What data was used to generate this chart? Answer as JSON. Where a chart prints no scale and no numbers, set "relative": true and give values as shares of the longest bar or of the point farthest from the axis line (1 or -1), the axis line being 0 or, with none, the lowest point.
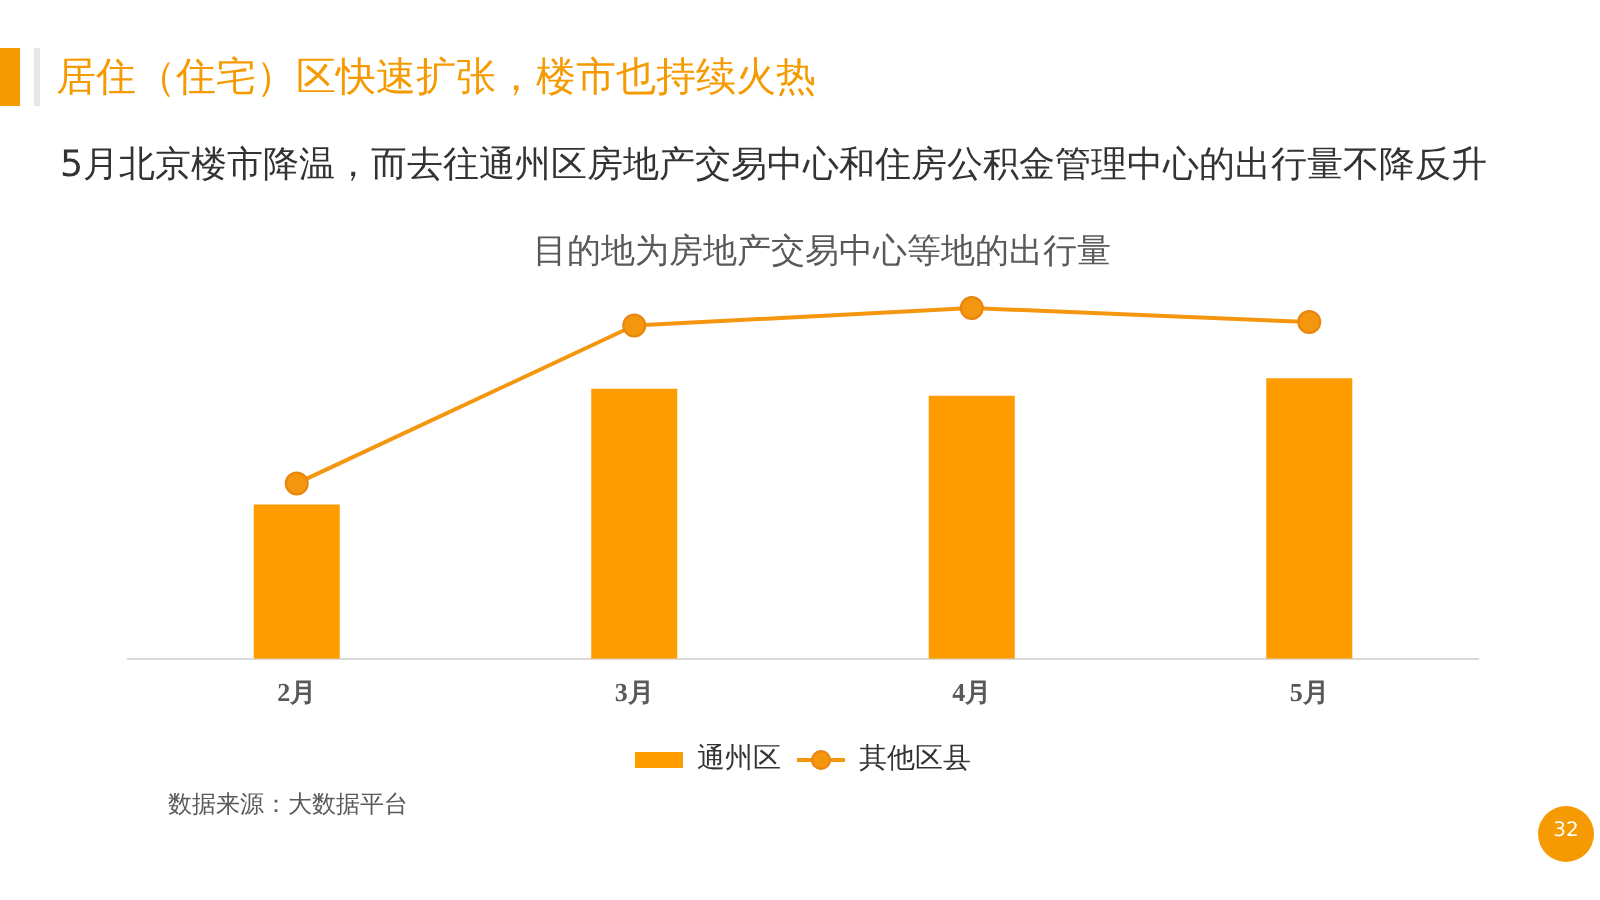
{
  "chart_data": {
    "type": "bar",
    "title": "居住（住宅）区快速扩张，楼市也持续火热",
    "subtitle": "5月北京楼市降温，而去往通州区房地产交易中心和住房公积金管理中心的出行量不降反升",
    "annotations": [
      "目的地为房地产交易中心等地的出行量",
      "数据来源：大数据平台",
      "32"
    ],
    "categories": [
      "2月",
      "3月",
      "4月",
      "5月"
    ],
    "relative": true,
    "series": [
      {
        "name": "通州区",
        "color": "#ff9c00",
        "values": [
          0.44,
          0.77,
          0.75,
          0.8
        ]
      },
      {
        "name": "其他区县",
        "type": "line",
        "color": "#f5960f",
        "values": [
          0.5,
          0.95,
          1,
          0.96
        ]
      }
    ],
    "marker": "circle",
    "legend": "bottom",
    "grid": false
  }
}
